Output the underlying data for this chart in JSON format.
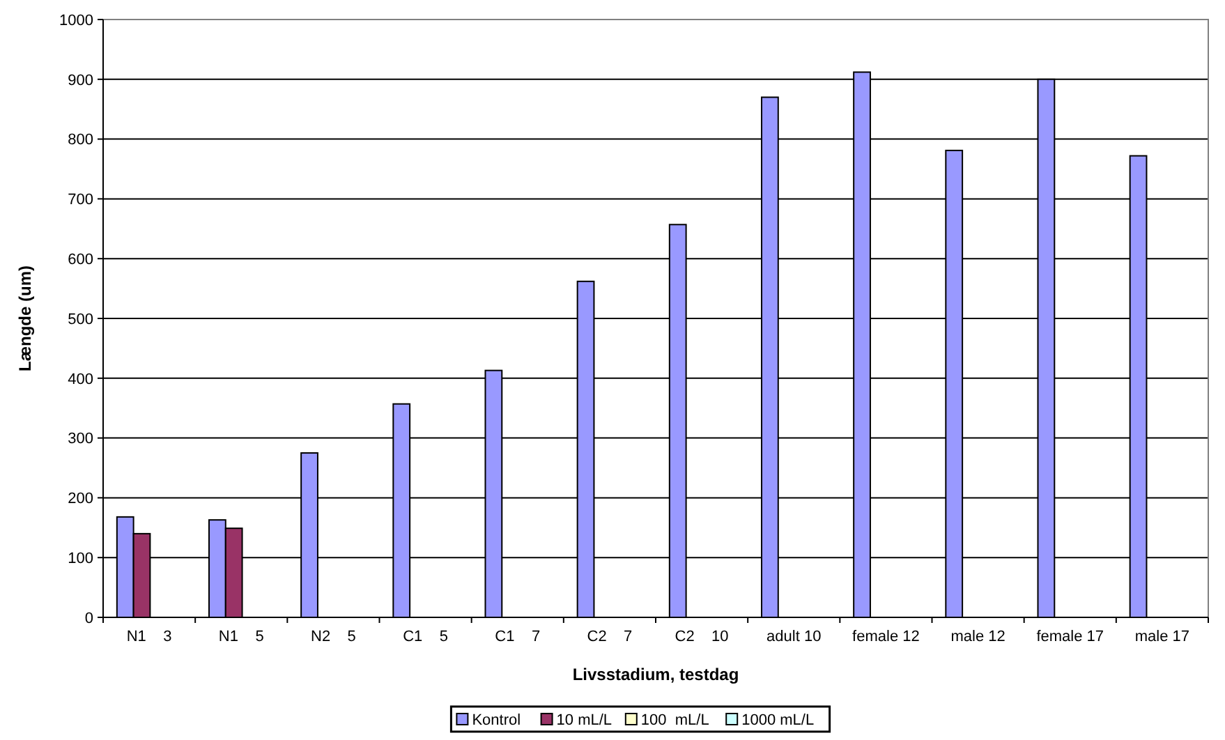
{
  "chart_data": {
    "type": "bar",
    "xlabel": "Livsstadium, testdag",
    "ylabel": "Længde (um)",
    "categories": [
      "N1    3",
      "N1    5",
      "N2    5",
      "C1    5",
      "C1    7",
      "C2    7",
      "C2    10",
      "adult 10",
      "female 12",
      "male 12",
      "female 17",
      "male 17"
    ],
    "series": [
      {
        "name": "Kontrol",
        "color": "#9999ff",
        "values": [
          168,
          163,
          275,
          357,
          413,
          562,
          657,
          870,
          912,
          781,
          900,
          772
        ]
      },
      {
        "name": "10 mL/L",
        "color": "#993366",
        "values": [
          140,
          149,
          null,
          null,
          null,
          null,
          null,
          null,
          null,
          null,
          null,
          null
        ]
      },
      {
        "name": "100  mL/L",
        "color": "#ffffcc",
        "values": [
          null,
          null,
          null,
          null,
          null,
          null,
          null,
          null,
          null,
          null,
          null,
          null
        ]
      },
      {
        "name": "1000 mL/L",
        "color": "#ccffff",
        "values": [
          null,
          null,
          null,
          null,
          null,
          null,
          null,
          null,
          null,
          null,
          null,
          null
        ]
      }
    ],
    "ylim": [
      0,
      1000
    ],
    "yticks": [
      0,
      100,
      200,
      300,
      400,
      500,
      600,
      700,
      800,
      900,
      1000
    ],
    "grid": "y",
    "legend": "bottom"
  }
}
